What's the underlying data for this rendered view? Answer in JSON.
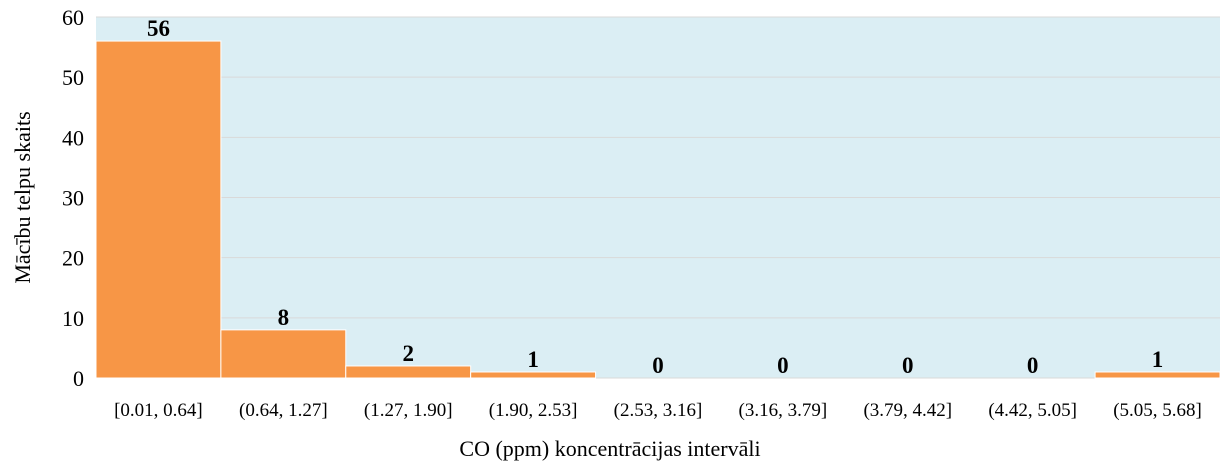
{
  "chart_data": {
    "type": "bar",
    "title": "",
    "xlabel": "CO (ppm) koncentrācijas intervāli",
    "ylabel": "Mācību telpu skaits",
    "categories": [
      "[0.01, 0.64]",
      "(0.64, 1.27]",
      "(1.27, 1.90]",
      "(1.90, 2.53]",
      "(2.53, 3.16]",
      "(3.16, 3.79]",
      "(3.79, 4.42]",
      "(4.42, 5.05]",
      "(5.05, 5.68]"
    ],
    "values": [
      56,
      8,
      2,
      1,
      0,
      0,
      0,
      0,
      1
    ],
    "yticks": [
      0,
      10,
      20,
      30,
      40,
      50,
      60
    ],
    "ylim": [
      0,
      60
    ],
    "grid": true,
    "legend": "none",
    "colors": {
      "bar": "#F79646",
      "plot_background": "#DBEEF4",
      "gridline": "#D9D9D9"
    }
  }
}
